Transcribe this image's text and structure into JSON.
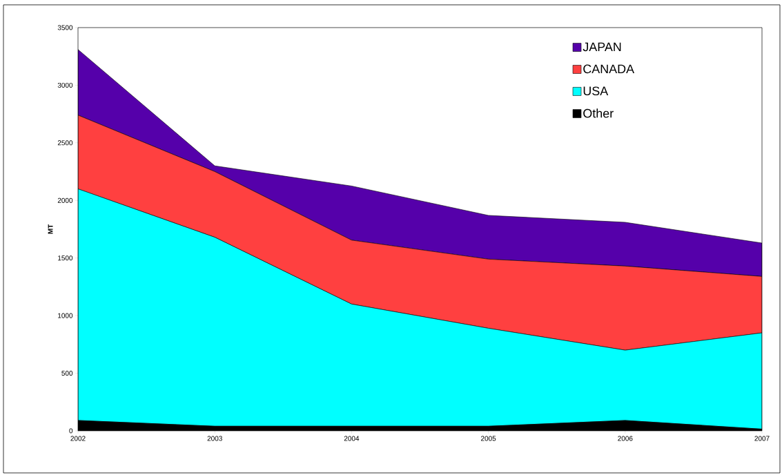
{
  "chart_data": {
    "type": "area",
    "stacked": true,
    "ylabel": "MT",
    "x": [
      2002,
      2003,
      2004,
      2005,
      2006,
      2007
    ],
    "xlim": [
      2002,
      2007
    ],
    "xticks": [
      2002,
      2003,
      2004,
      2005,
      2006,
      2007
    ],
    "ylim": [
      0,
      3500
    ],
    "yticks": [
      0,
      500,
      1000,
      1500,
      2000,
      2500,
      3000,
      3500
    ],
    "legend": "top right",
    "series": [
      {
        "name": "Other",
        "color": "#000000",
        "values": [
          90,
          40,
          40,
          40,
          90,
          15
        ]
      },
      {
        "name": "USA",
        "color": "#00ffff",
        "values": [
          2010,
          1640,
          1060,
          850,
          610,
          835
        ]
      },
      {
        "name": "CANADA",
        "color": "#ff4040",
        "values": [
          640,
          570,
          555,
          600,
          730,
          490
        ]
      },
      {
        "name": "JAPAN",
        "color": "#5500aa",
        "values": [
          570,
          50,
          470,
          380,
          380,
          290
        ]
      }
    ]
  }
}
